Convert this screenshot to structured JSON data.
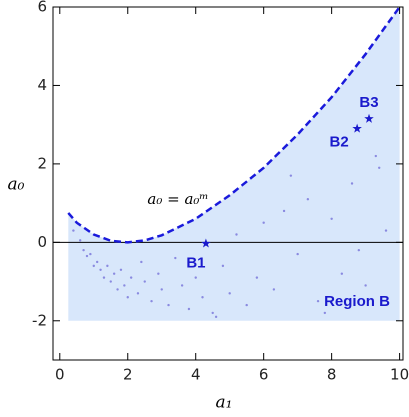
{
  "chart_data": {
    "type": "scatter",
    "x_label": "a₁",
    "y_label": "a₀",
    "xlim": [
      -0.2,
      10.1
    ],
    "ylim": [
      -3,
      6
    ],
    "xticks": [
      0,
      2,
      4,
      6,
      8,
      10
    ],
    "yticks": [
      -2,
      0,
      2,
      4,
      6
    ],
    "region": {
      "name": "Region B",
      "color": "#d8e7fb",
      "floor": -2
    },
    "curve": {
      "name": "a₀ = a₀ᵐ",
      "color": "#1a1adb",
      "x": [
        0.25,
        0.5,
        1,
        1.5,
        2,
        2.5,
        3,
        4,
        5,
        6,
        7,
        8,
        9,
        10
      ],
      "values": [
        0.75,
        0.5,
        0.2,
        0.04,
        0,
        0.05,
        0.18,
        0.6,
        1.2,
        1.9,
        2.75,
        3.7,
        4.8,
        6.0
      ]
    },
    "series": [
      {
        "name": "points",
        "color": "#8a8ae0",
        "x": [
          0.4,
          0.6,
          0.7,
          0.8,
          0.9,
          1.0,
          1.1,
          1.2,
          1.3,
          1.4,
          1.5,
          1.6,
          1.7,
          1.8,
          1.9,
          2.0,
          2.1,
          2.3,
          2.4,
          2.5,
          2.7,
          2.9,
          3.0,
          3.2,
          3.4,
          3.6,
          3.8,
          4.0,
          4.2,
          4.5,
          4.8,
          5.0,
          5.2,
          5.5,
          5.8,
          6.0,
          6.3,
          6.6,
          7.0,
          7.3,
          7.6,
          8.0,
          8.3,
          8.6,
          9.0,
          9.3,
          9.6,
          4.6,
          6.8,
          7.8,
          8.8,
          9.4
        ],
        "values": [
          0.3,
          0.05,
          -0.2,
          -0.35,
          -0.3,
          -0.6,
          -0.5,
          -0.7,
          -0.9,
          -0.6,
          -1.0,
          -0.8,
          -1.2,
          -0.7,
          -1.1,
          -1.4,
          -0.9,
          -1.3,
          -0.5,
          -1.0,
          -1.5,
          -0.8,
          -1.2,
          -1.6,
          -0.4,
          -1.1,
          -1.7,
          -0.9,
          -1.4,
          -1.8,
          -0.6,
          -1.3,
          0.2,
          -1.6,
          -0.9,
          0.5,
          -1.2,
          0.8,
          -0.3,
          1.1,
          -1.5,
          0.6,
          -0.8,
          1.5,
          -1.1,
          2.2,
          0.3,
          -1.9,
          1.7,
          -1.8,
          -0.2,
          1.9
        ]
      },
      {
        "name": "benchmarks",
        "color": "#1a1acc",
        "x": [
          4.3,
          8.75,
          9.1
        ],
        "values": [
          -0.03,
          2.9,
          3.15
        ],
        "labels": [
          "B1",
          "B2",
          "B3"
        ]
      }
    ]
  }
}
